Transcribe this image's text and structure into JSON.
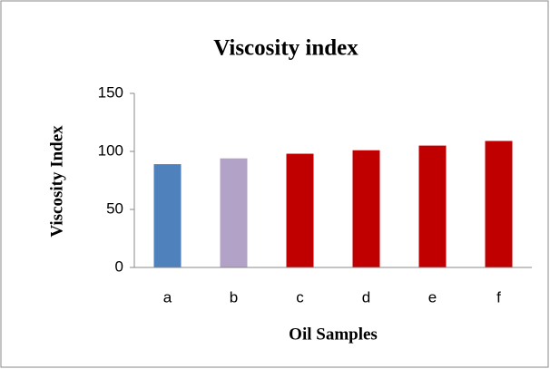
{
  "chart_data": {
    "type": "bar",
    "title": "Viscosity index",
    "x_label": "Oil Samples",
    "y_label": "Viscosity Index",
    "categories": [
      "a",
      "b",
      "c",
      "d",
      "e",
      "f"
    ],
    "values": [
      89,
      94,
      98,
      101,
      105,
      109
    ],
    "colors": [
      "#4f81bd",
      "#b3a2c7",
      "#c00000",
      "#c00000",
      "#c00000",
      "#c00000"
    ],
    "ylim": [
      0,
      150
    ],
    "yticks": [
      0,
      50,
      100,
      150
    ],
    "grid": false
  }
}
